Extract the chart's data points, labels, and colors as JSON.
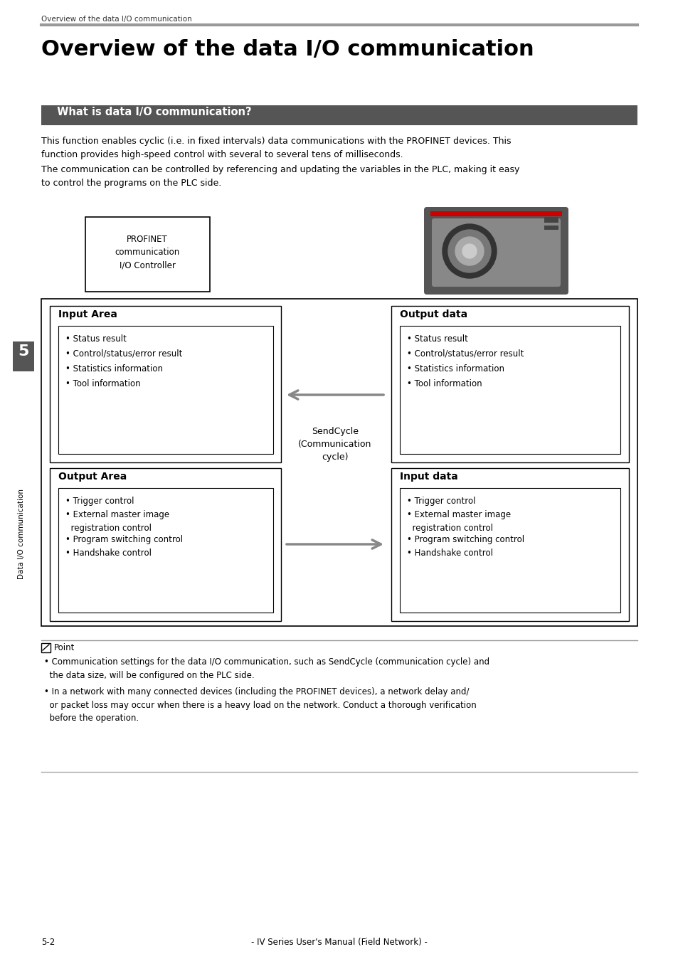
{
  "page_header": "Overview of the data I/O communication",
  "main_title": "Overview of the data I/O communication",
  "section_header": "  What is data I/O communication?",
  "section_header_bg": "#555555",
  "section_header_color": "#ffffff",
  "para1": "This function enables cyclic (i.e. in fixed intervals) data communications with the PROFINET devices. This\nfunction provides high-speed control with several to several tens of milliseconds.",
  "para2": "The communication can be controlled by referencing and updating the variables in the PLC, making it easy\nto control the programs on the PLC side.",
  "profinet_box_text": "PROFINET\ncommunication\nI/O Controller",
  "left_outer_box_title": "Input Area",
  "left_inner_items": [
    "• Status result",
    "• Control/status/error result",
    "• Statistics information",
    "• Tool information"
  ],
  "left_outer_box_title2": "Output Area",
  "left_inner_items2": [
    "• Trigger control",
    "• External master image\n  registration control",
    "• Program switching control",
    "• Handshake control"
  ],
  "right_outer_box_title": "Output data",
  "right_inner_items": [
    "• Status result",
    "• Control/status/error result",
    "• Statistics information",
    "• Tool information"
  ],
  "right_outer_box_title2": "Input data",
  "right_inner_items2": [
    "• Trigger control",
    "• External master image\n  registration control",
    "• Program switching control",
    "• Handshake control"
  ],
  "send_cycle_label": "SendCycle\n(Communication\ncycle)",
  "point_label": "Point",
  "point_text1": "• Communication settings for the data I/O communication, such as SendCycle (communication cycle) and\n  the data size, will be configured on the PLC side.",
  "point_text2": "• In a network with many connected devices (including the PROFINET devices), a network delay and/\n  or packet loss may occur when there is a heavy load on the network. Conduct a thorough verification\n  before the operation.",
  "sidebar_text": "Data I/O communication",
  "sidebar_number": "5",
  "footer_text": "- IV Series User's Manual (Field Network) -",
  "footer_page": "5-2",
  "bg_color": "#ffffff",
  "text_color": "#000000",
  "gray_color": "#777777",
  "dark_gray": "#555555",
  "box_border_color": "#000000",
  "arrow_color": "#888888"
}
